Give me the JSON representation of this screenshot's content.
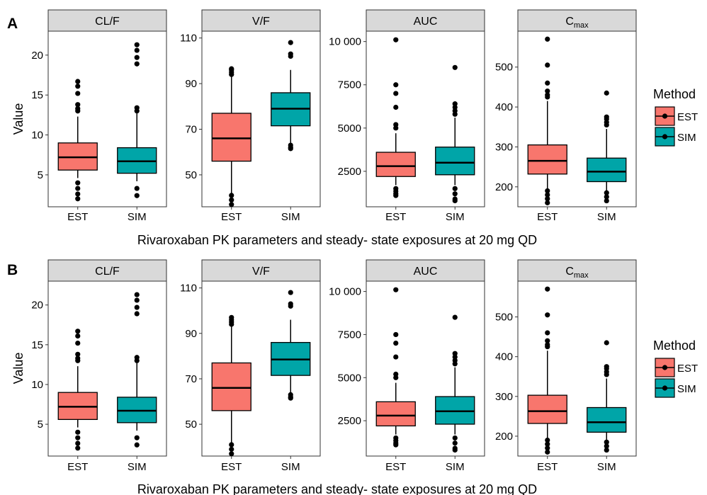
{
  "colors": {
    "EST": "#F8766D",
    "SIM": "#00A5A8"
  },
  "legend": {
    "title": "Method",
    "items": [
      {
        "key": "EST",
        "label": "EST"
      },
      {
        "key": "SIM",
        "label": "SIM"
      }
    ]
  },
  "rows": [
    {
      "label": "A",
      "ylabel": "Value",
      "xtitle": "Rivaroxaban PK parameters and steady- state exposures at 20 mg QD"
    },
    {
      "label": "B",
      "ylabel": "Value",
      "xtitle": "Rivaroxaban PK parameters and steady- state exposures at 20 mg QD"
    }
  ],
  "chart_data": [
    {
      "type": "boxplot",
      "panel": "A",
      "legend_position": "right",
      "grid": false,
      "facets": [
        {
          "title": "CL/F",
          "title_main": "CL/F",
          "title_sub": "",
          "ylim": [
            1,
            23
          ],
          "yticks": [
            5,
            10,
            15,
            20
          ],
          "ytick_labels": [
            "5",
            "10",
            "15",
            "20"
          ],
          "categories": [
            "EST",
            "SIM"
          ],
          "boxes": [
            {
              "group": "EST",
              "min": 4.6,
              "q1": 5.6,
              "median": 7.2,
              "q3": 9.0,
              "max": 12.3,
              "outliers": [
                13.0,
                13.3,
                13.8,
                15.2,
                16.1,
                16.7,
                4.0,
                3.3,
                2.6,
                2.0
              ]
            },
            {
              "group": "SIM",
              "min": 4.2,
              "q1": 5.2,
              "median": 6.7,
              "q3": 8.4,
              "max": 12.7,
              "outliers": [
                13.0,
                13.4,
                18.9,
                19.7,
                20.6,
                21.3,
                3.3,
                2.4
              ]
            }
          ]
        },
        {
          "title": "V/F",
          "title_main": "V/F",
          "title_sub": "",
          "ylim": [
            36,
            113
          ],
          "yticks": [
            50,
            70,
            90,
            110
          ],
          "ytick_labels": [
            "50",
            "70",
            "90",
            "110"
          ],
          "categories": [
            "EST",
            "SIM"
          ],
          "boxes": [
            {
              "group": "EST",
              "min": 42,
              "q1": 56,
              "median": 66,
              "q3": 77,
              "max": 93,
              "outliers": [
                94,
                95,
                96,
                96.5,
                41,
                39,
                37
              ]
            },
            {
              "group": "SIM",
              "min": 64,
              "q1": 71.5,
              "median": 79,
              "q3": 86,
              "max": 96,
              "outliers": [
                102,
                103,
                108,
                63,
                62,
                61.5
              ]
            }
          ]
        },
        {
          "title": "AUC",
          "title_main": "AUC",
          "title_sub": "",
          "ylim": [
            450,
            10600
          ],
          "yticks": [
            2500,
            5000,
            7500,
            10000
          ],
          "ytick_labels": [
            "2500",
            "5000",
            "7500",
            "10 000"
          ],
          "categories": [
            "EST",
            "SIM"
          ],
          "boxes": [
            {
              "group": "EST",
              "min": 1700,
              "q1": 2200,
              "median": 2800,
              "q3": 3600,
              "max": 4700,
              "outliers": [
                5000,
                5200,
                6200,
                7000,
                7500,
                10100,
                1500,
                1350,
                1200,
                1100
              ]
            },
            {
              "group": "SIM",
              "min": 1700,
              "q1": 2300,
              "median": 3000,
              "q3": 3900,
              "max": 5600,
              "outliers": [
                5800,
                6000,
                6200,
                6400,
                8500,
                1500,
                1200,
                900,
                800
              ]
            }
          ]
        },
        {
          "title": "Cmax",
          "title_main": "C",
          "title_sub": "max",
          "ylim": [
            150,
            590
          ],
          "yticks": [
            200,
            300,
            400,
            500
          ],
          "ytick_labels": [
            "200",
            "300",
            "400",
            "500"
          ],
          "categories": [
            "EST",
            "SIM"
          ],
          "boxes": [
            {
              "group": "EST",
              "min": 195,
              "q1": 232,
              "median": 265,
              "q3": 305,
              "max": 415,
              "outliers": [
                425,
                430,
                440,
                460,
                505,
                570,
                190,
                180,
                170,
                160
              ]
            },
            {
              "group": "SIM",
              "min": 190,
              "q1": 213,
              "median": 238,
              "q3": 272,
              "max": 345,
              "outliers": [
                355,
                362,
                370,
                375,
                435,
                185,
                175,
                165
              ]
            }
          ]
        }
      ]
    },
    {
      "type": "boxplot",
      "panel": "B",
      "legend_position": "right",
      "grid": false,
      "facets": [
        {
          "title": "CL/F",
          "title_main": "CL/F",
          "title_sub": "",
          "ylim": [
            1,
            23
          ],
          "yticks": [
            5,
            10,
            15,
            20
          ],
          "ytick_labels": [
            "5",
            "10",
            "15",
            "20"
          ],
          "categories": [
            "EST",
            "SIM"
          ],
          "boxes": [
            {
              "group": "EST",
              "min": 4.6,
              "q1": 5.6,
              "median": 7.2,
              "q3": 9.0,
              "max": 12.3,
              "outliers": [
                13.0,
                13.3,
                13.8,
                15.2,
                16.1,
                16.7,
                4.0,
                3.3,
                2.6,
                2.0
              ]
            },
            {
              "group": "SIM",
              "min": 4.2,
              "q1": 5.2,
              "median": 6.7,
              "q3": 8.4,
              "max": 12.7,
              "outliers": [
                13.0,
                13.4,
                18.9,
                19.7,
                20.6,
                21.3,
                3.3,
                2.4
              ]
            }
          ]
        },
        {
          "title": "V/F",
          "title_main": "V/F",
          "title_sub": "",
          "ylim": [
            36,
            113
          ],
          "yticks": [
            50,
            70,
            90,
            110
          ],
          "ytick_labels": [
            "50",
            "70",
            "90",
            "110"
          ],
          "categories": [
            "EST",
            "SIM"
          ],
          "boxes": [
            {
              "group": "EST",
              "min": 42,
              "q1": 56,
              "median": 66,
              "q3": 77,
              "max": 93,
              "outliers": [
                94,
                95,
                96,
                97,
                41,
                39,
                37
              ]
            },
            {
              "group": "SIM",
              "min": 64,
              "q1": 71.5,
              "median": 78.5,
              "q3": 86,
              "max": 96,
              "outliers": [
                102,
                103,
                108,
                63,
                62,
                61.5
              ]
            }
          ]
        },
        {
          "title": "AUC",
          "title_main": "AUC",
          "title_sub": "",
          "ylim": [
            450,
            10600
          ],
          "yticks": [
            2500,
            5000,
            7500,
            10000
          ],
          "ytick_labels": [
            "2500",
            "5000",
            "7500",
            "10 000"
          ],
          "categories": [
            "EST",
            "SIM"
          ],
          "boxes": [
            {
              "group": "EST",
              "min": 1700,
              "q1": 2200,
              "median": 2800,
              "q3": 3600,
              "max": 4700,
              "outliers": [
                5000,
                5200,
                6200,
                7000,
                7500,
                10100,
                1500,
                1350,
                1200,
                1100
              ]
            },
            {
              "group": "SIM",
              "min": 1700,
              "q1": 2300,
              "median": 3050,
              "q3": 3900,
              "max": 5600,
              "outliers": [
                5800,
                6000,
                6200,
                6400,
                8500,
                1500,
                1200,
                900,
                800
              ]
            }
          ]
        },
        {
          "title": "Cmax",
          "title_main": "C",
          "title_sub": "max",
          "ylim": [
            150,
            590
          ],
          "yticks": [
            200,
            300,
            400,
            500
          ],
          "ytick_labels": [
            "200",
            "300",
            "400",
            "500"
          ],
          "categories": [
            "EST",
            "SIM"
          ],
          "boxes": [
            {
              "group": "EST",
              "min": 195,
              "q1": 232,
              "median": 263,
              "q3": 303,
              "max": 415,
              "outliers": [
                425,
                430,
                440,
                460,
                505,
                570,
                190,
                180,
                170,
                160
              ]
            },
            {
              "group": "SIM",
              "min": 190,
              "q1": 210,
              "median": 235,
              "q3": 272,
              "max": 345,
              "outliers": [
                355,
                362,
                370,
                375,
                435,
                185,
                175,
                165
              ]
            }
          ]
        }
      ]
    }
  ]
}
